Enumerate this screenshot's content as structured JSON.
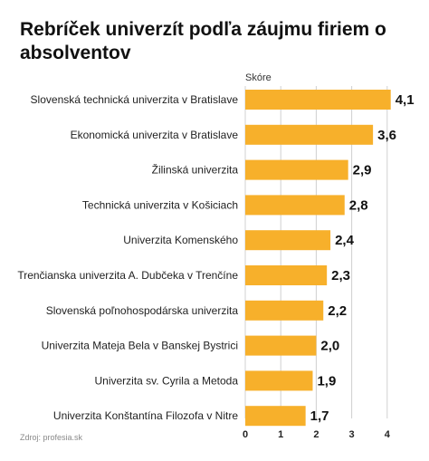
{
  "source": "Zdroj: profesia.sk",
  "chart_data": {
    "type": "bar",
    "orientation": "horizontal",
    "title": "Rebríček univerzít podľa záujmu firiem o absolventov",
    "xlabel": "Skóre",
    "categories": [
      "Slovenská technická univerzita v Bratislave",
      "Ekonomická univerzita v Bratislave",
      "Žilinská univerzita",
      "Technická univerzita v Košiciach",
      "Univerzita Komenského",
      "Trenčianska univerzita A. Dubčeka v Trenčíne",
      "Slovenská poľnohospodárska univerzita",
      "Univerzita Mateja Bela v Banskej Bystrici",
      "Univerzita sv. Cyrila a Metoda",
      "Univerzita Konštantína Filozofa v Nitre"
    ],
    "values": [
      4.1,
      3.6,
      2.9,
      2.8,
      2.4,
      2.3,
      2.2,
      2.0,
      1.9,
      1.7
    ],
    "value_labels": [
      "4,1",
      "3,6",
      "2,9",
      "2,8",
      "2,4",
      "2,3",
      "2,2",
      "2,0",
      "1,9",
      "1,7"
    ],
    "xticks": [
      0,
      1,
      2,
      3,
      4
    ],
    "xtick_labels": [
      "0",
      "1",
      "2",
      "3",
      "4"
    ],
    "xlim": [
      0,
      4.1
    ],
    "grid": true,
    "bar_color": "#f7b02b",
    "grid_color": "#d0d0d0"
  }
}
